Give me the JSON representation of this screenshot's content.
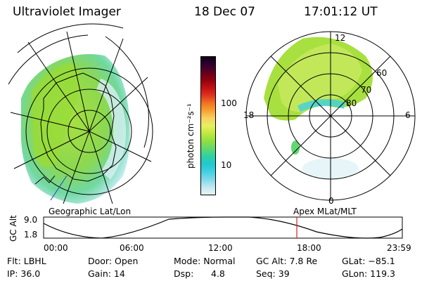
{
  "header": {
    "instrument": "Ultraviolet Imager",
    "date": "18 Dec 07",
    "time": "17:01:12 UT"
  },
  "colorbar": {
    "unit_label": "photon cm⁻²s⁻¹",
    "ticks": [
      "100",
      "10"
    ],
    "colors": [
      "#e8f4f8",
      "#bfe8f0",
      "#7fd8e8",
      "#40d0e0",
      "#20c8d0",
      "#30d0a0",
      "#60d870",
      "#90e040",
      "#c0e840",
      "#e8f060",
      "#f8d060",
      "#f8a030",
      "#f07020",
      "#e03020",
      "#c01010",
      "#900010",
      "#600020",
      "#300030",
      "#100018"
    ]
  },
  "maps": {
    "left_label": "Geographic Lat/Lon",
    "right_label": "Apex MLat/MLT",
    "polar_labels": {
      "top": "12",
      "left": "18",
      "right": "6",
      "bottom": "0"
    },
    "lat_labels": [
      "60",
      "70",
      "80"
    ]
  },
  "timeline": {
    "axis_label": "GC Alt",
    "y_ticks": [
      "9.0",
      "1.8"
    ],
    "x_ticks": [
      "00:00",
      "06:00",
      "12:00",
      "18:00",
      "23:59"
    ],
    "current_marker_time": "17:01"
  },
  "info": {
    "flt": "Flt: LBHL",
    "ip": "IP: 36.0",
    "door": "Door: Open",
    "gain": "Gain: 14",
    "mode": "Mode: Normal",
    "dsp_label": "Dsp:",
    "dsp_value": "4.8",
    "gcalt": "GC Alt: 7.8 Re",
    "seq": "Seq: 39",
    "glat": "GLat: −85.1",
    "glon": "GLon: 119.3"
  }
}
